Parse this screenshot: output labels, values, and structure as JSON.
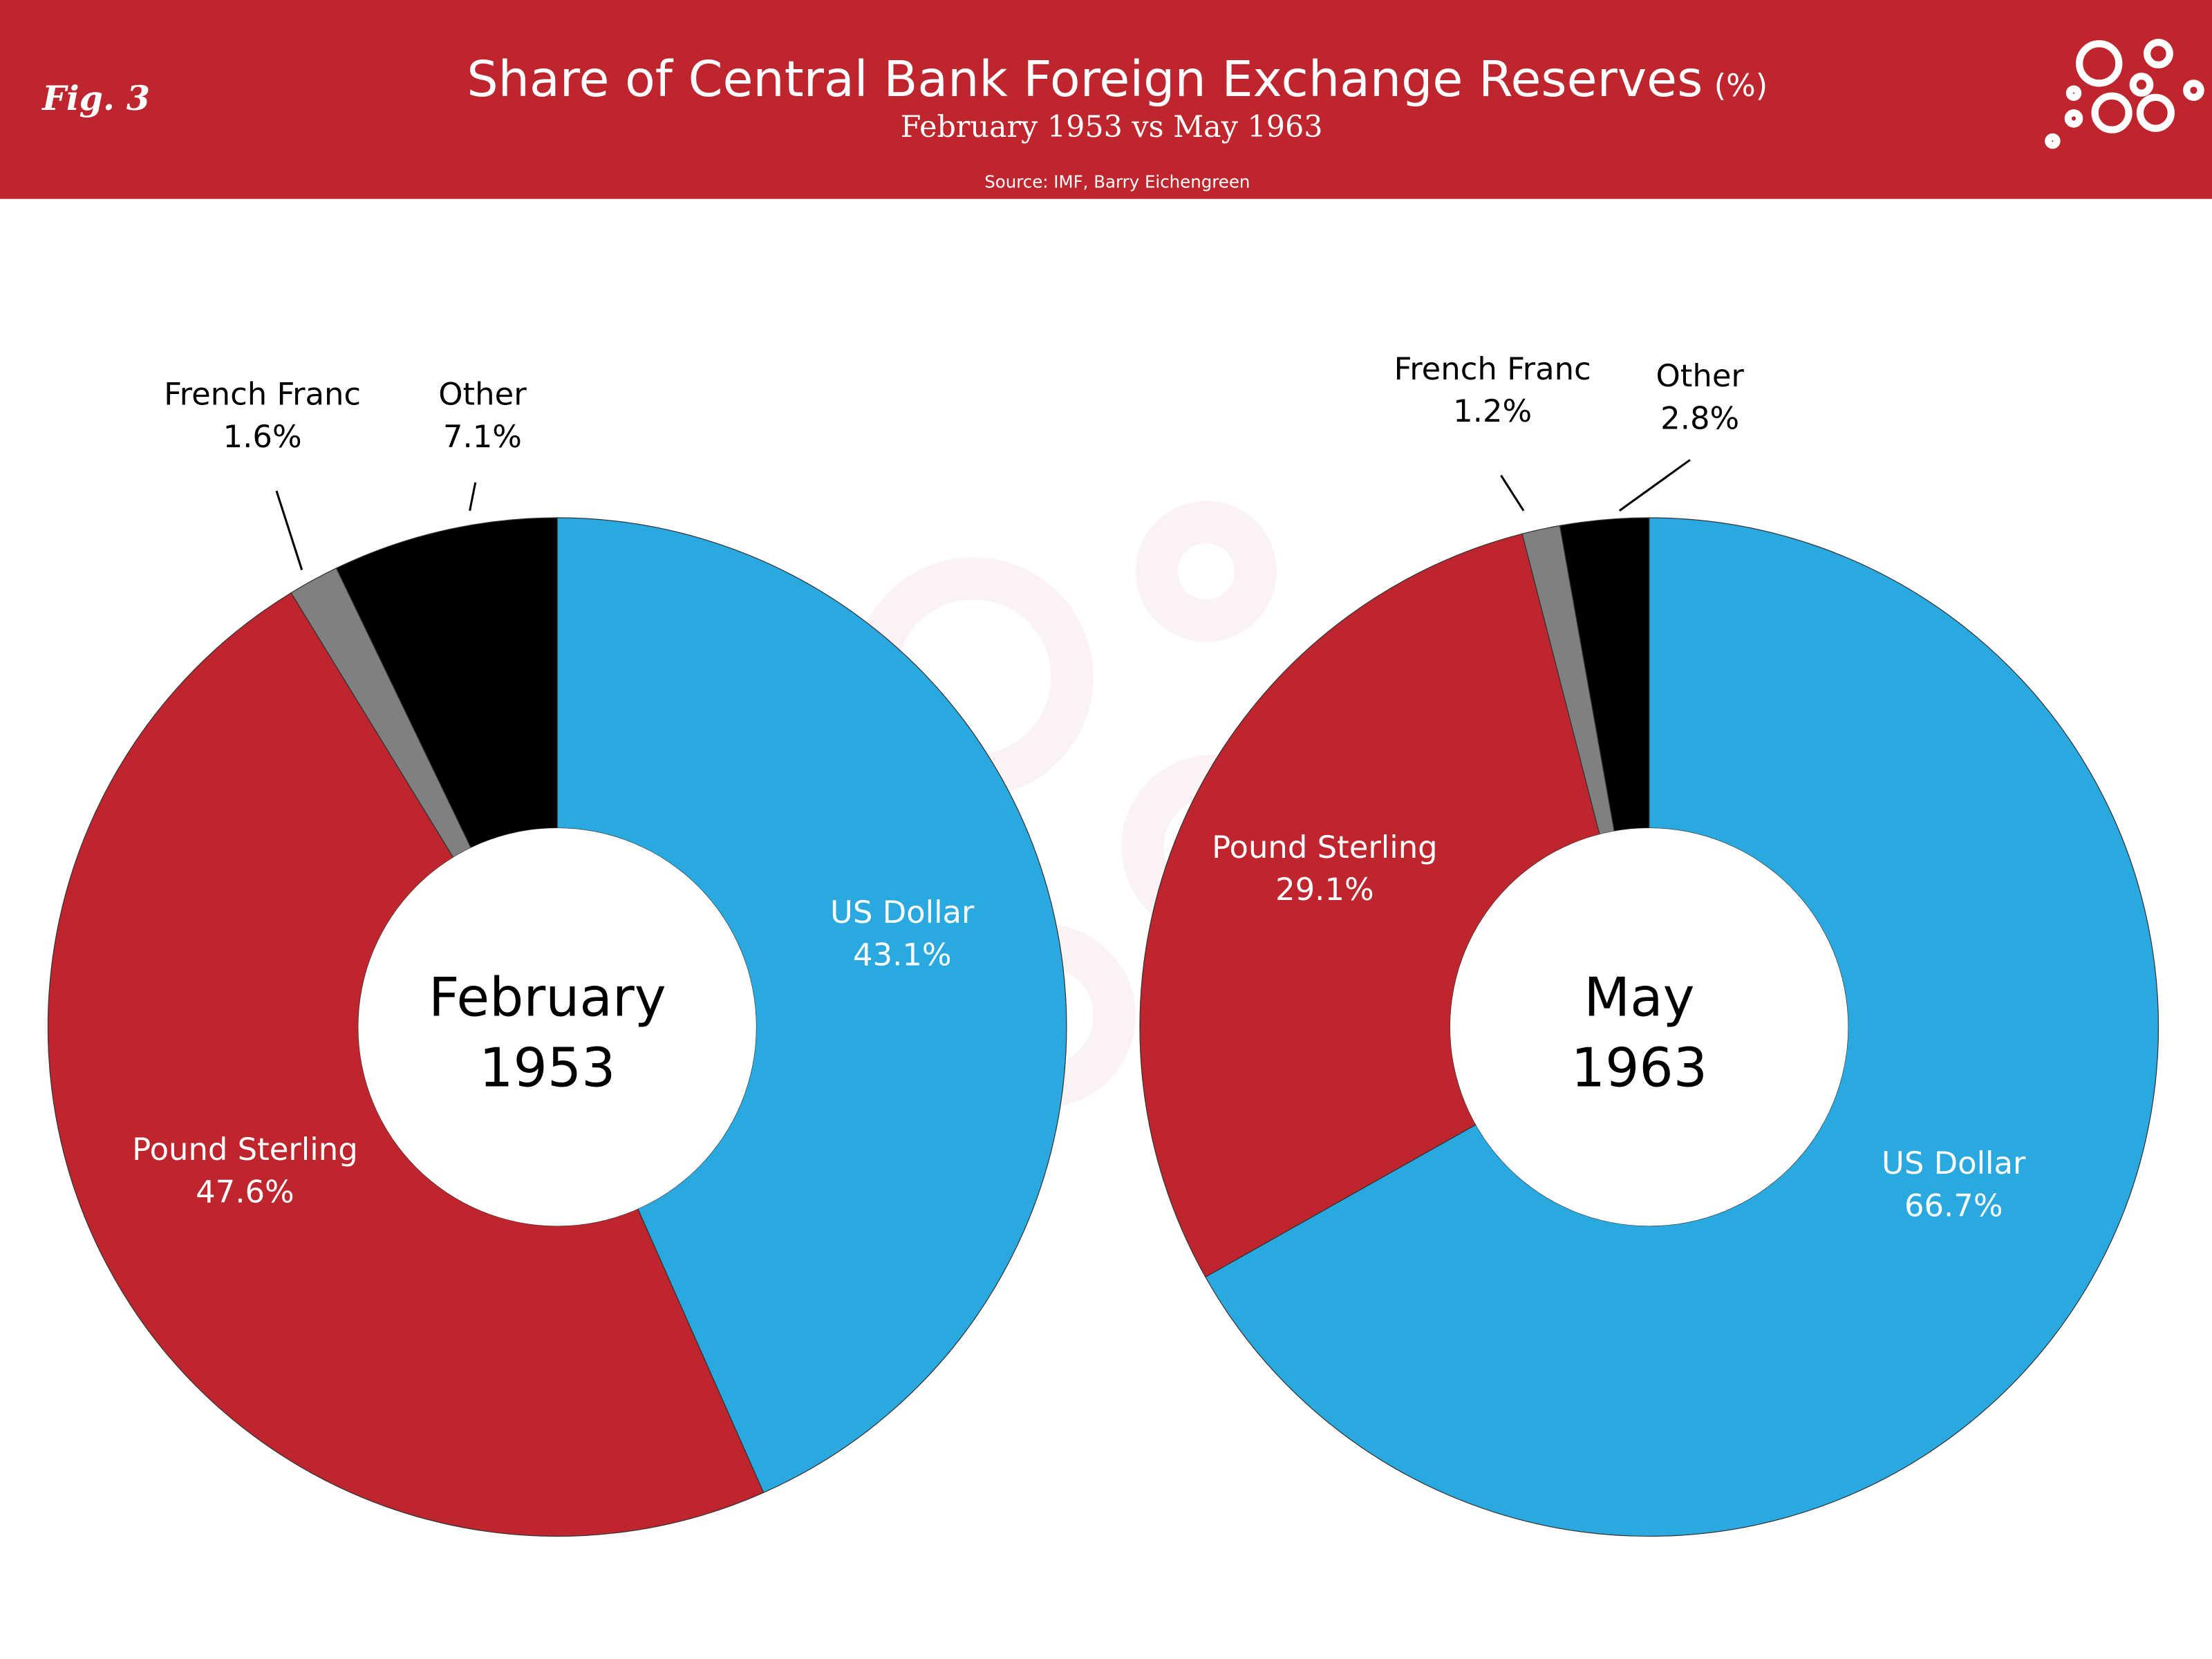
{
  "header": {
    "fig": "Fig. 3",
    "title": "Share of Central Bank Foreign Exchange Reserves",
    "title_unit": "(%)",
    "subtitle": "February 1953 vs May 1963",
    "source": "Source: IMF, Barry Eichengreen"
  },
  "chart_data": [
    {
      "type": "donut",
      "center_label": [
        "February",
        "1953"
      ],
      "categories": [
        "US Dollar",
        "Pound Sterling",
        "French Franc",
        "Other"
      ],
      "values": [
        43.1,
        47.6,
        1.6,
        7.1
      ],
      "value_labels": [
        "43.1%",
        "47.6%",
        "1.6%",
        "7.1%"
      ],
      "colors": [
        "#29a9e0",
        "#be252d",
        "#808080",
        "#000000"
      ]
    },
    {
      "type": "donut",
      "center_label": [
        "May",
        "1963"
      ],
      "categories": [
        "US Dollar",
        "Pound Sterling",
        "French Franc",
        "Other"
      ],
      "values": [
        66.7,
        29.1,
        1.2,
        2.8
      ],
      "value_labels": [
        "66.7%",
        "29.1%",
        "1.2%",
        "2.8%"
      ],
      "colors": [
        "#29a9e0",
        "#be252d",
        "#808080",
        "#000000"
      ]
    }
  ]
}
